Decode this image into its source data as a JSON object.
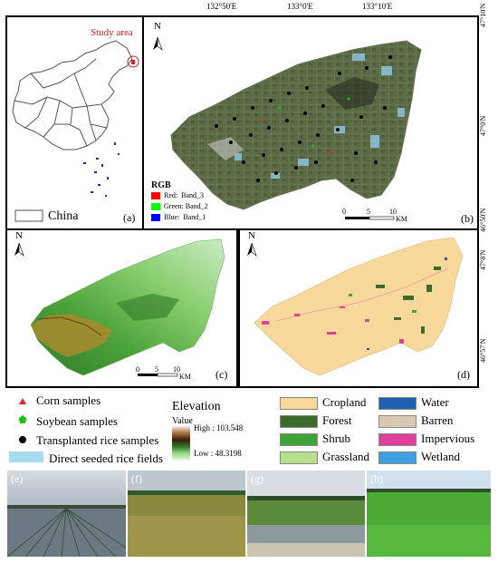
{
  "top_coords": [
    "132°50'E",
    "133°0'E",
    "133°10'E"
  ],
  "right_coords_b": [
    "47°10'N",
    "47°0'N",
    "46°50'N"
  ],
  "right_coords_d": [
    "47°8'N",
    "46°57'N"
  ],
  "panel_a": {
    "study_area": "Study area",
    "legend_label": "China",
    "label": "(a)"
  },
  "panel_b": {
    "label": "(b)",
    "rgb_title": "RGB",
    "rgb_items": [
      {
        "label": "Red:  Band_3",
        "color": "#ff0000"
      },
      {
        "label": "Green: Band_2",
        "color": "#00ff00"
      },
      {
        "label": "Blue:  Band_1",
        "color": "#0000ff"
      }
    ],
    "scale": [
      "0",
      "5",
      "10"
    ],
    "scale_unit": "KM"
  },
  "panel_c": {
    "label": "(c)",
    "scale": [
      "0",
      "5",
      "10"
    ],
    "scale_unit": "KM"
  },
  "panel_d": {
    "label": "(d)"
  },
  "north": "N",
  "legend_samples": [
    {
      "label": "Corn samples",
      "color": "#e0262b",
      "shape": "triangle"
    },
    {
      "label": "Soybean samples",
      "color": "#22c21a",
      "shape": "pentagon"
    },
    {
      "label": "Transplanted rice samples",
      "color": "#000000",
      "shape": "circle"
    },
    {
      "label": "Direct seeded rice fields",
      "color": "#a8dcf0",
      "shape": "rect"
    }
  ],
  "elevation": {
    "title": "Elevation",
    "value_label": "Value",
    "high": "High : 103.548",
    "low": "Low : 48.3198"
  },
  "landcover": [
    {
      "label": "Cropland",
      "color": "#f8d99b"
    },
    {
      "label": "Water",
      "color": "#1f5fb0"
    },
    {
      "label": "Forest",
      "color": "#3d6b2e"
    },
    {
      "label": "Barren",
      "color": "#d9c9b0"
    },
    {
      "label": "Shrub",
      "color": "#3fa33a"
    },
    {
      "label": "Impervious",
      "color": "#e0409a"
    },
    {
      "label": "Grassland",
      "color": "#b7e08d"
    },
    {
      "label": "Wetland",
      "color": "#3d9fe0"
    }
  ],
  "photos": [
    "(e)",
    "(f)",
    "(g)",
    "(h)"
  ]
}
